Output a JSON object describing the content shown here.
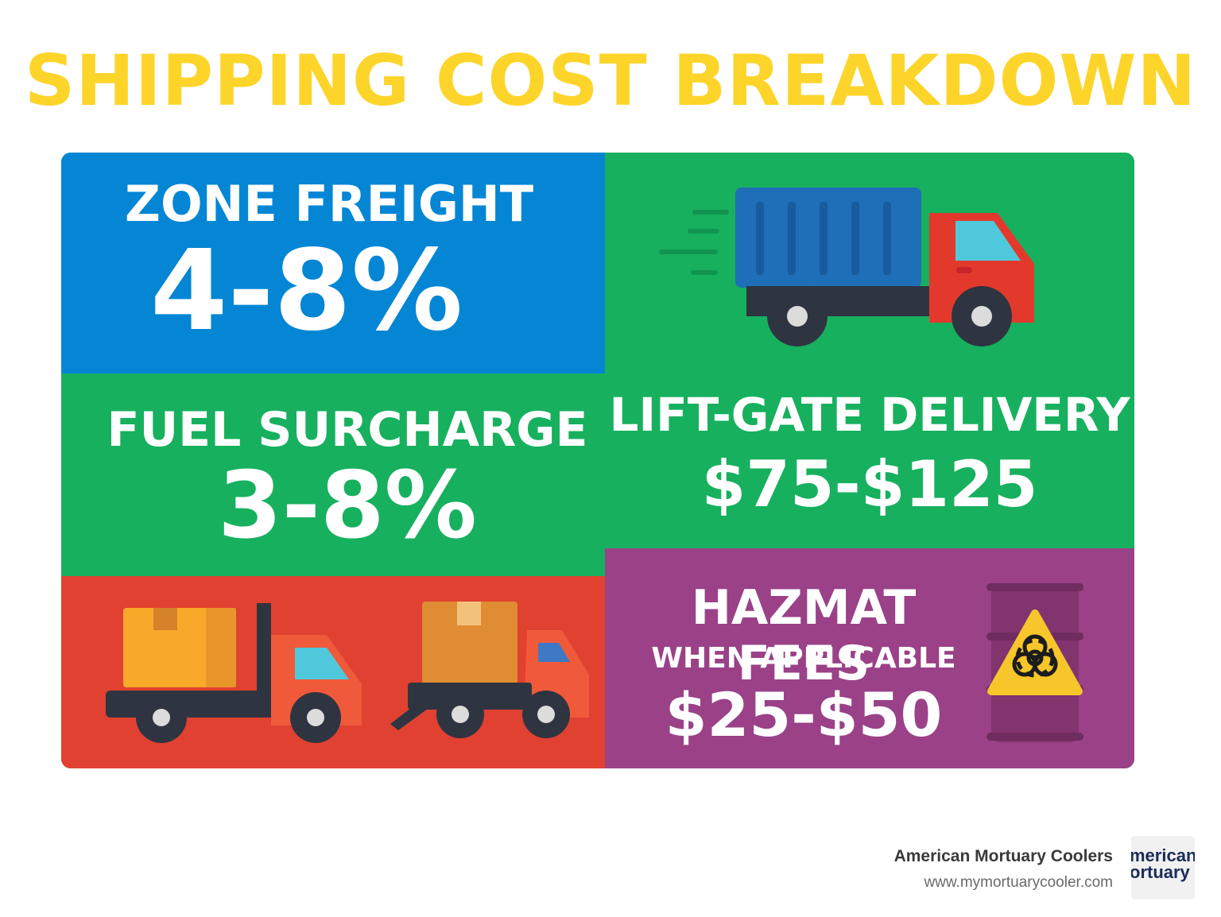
{
  "title": "SHIPPING COST BREAKDOWN",
  "panels": {
    "zone_freight": {
      "label": "ZONE FREIGHT",
      "value": "4-8%",
      "color": "#0486d4"
    },
    "fuel_surcharge": {
      "label": "FUEL SURCHARGE",
      "value": "3-8%",
      "color": "#17b05f"
    },
    "lift_gate": {
      "label": "LIFT-GATE DELIVERY",
      "value": "$75-$125",
      "color": "#17b05f"
    },
    "hazmat": {
      "label": "HAZMAT FEES",
      "sublabel": "WHEN APPLICABLE",
      "value": "$25-$50",
      "color": "#9a4188"
    },
    "trucks_panel": {
      "color": "#e04130"
    }
  },
  "icons": [
    "delivery-truck-icon",
    "liftgate-truck-icon",
    "flatbed-truck-icon",
    "biohazard-barrel-icon"
  ],
  "footer": {
    "brand": "American Mortuary Coolers",
    "url": "www.mymortuarycooler.com",
    "logo_line1": "merican",
    "logo_line2": "ortuary"
  },
  "accent_color": "#fdd52a"
}
